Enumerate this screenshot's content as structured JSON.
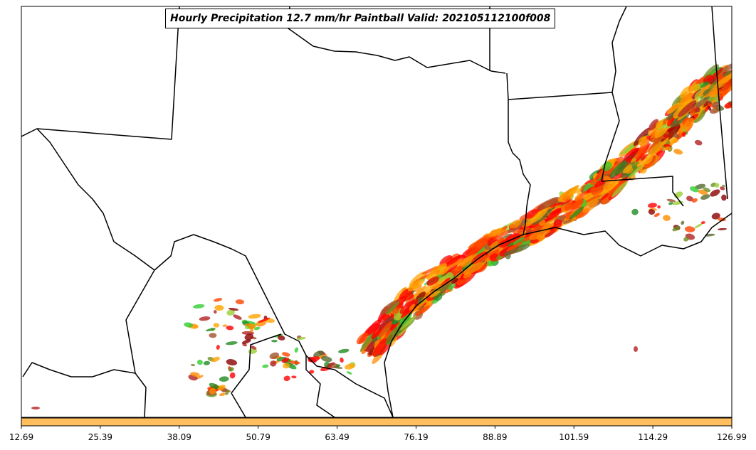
{
  "title": "Hourly Precipitation 12.7 mm/hr Paintball Valid: 202105112100f008",
  "colorbar": {
    "color": "#FFBF5F",
    "ticks": [
      "12.69",
      "25.39",
      "38.09",
      "50.79",
      "63.49",
      "76.19",
      "88.89",
      "101.59",
      "114.29",
      "126.99"
    ]
  },
  "member_colors": [
    "#8B0000",
    "#B22222",
    "#FF0000",
    "#FF4500",
    "#FF8C00",
    "#FFA500",
    "#556B2F",
    "#9ACD32",
    "#32CD32",
    "#228B22",
    "#6B8E23",
    "#A0522D"
  ]
}
